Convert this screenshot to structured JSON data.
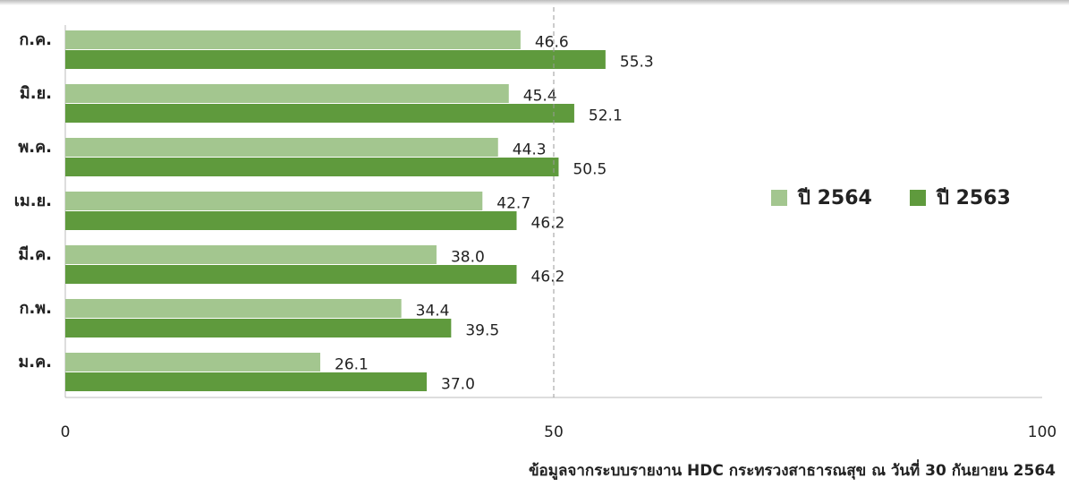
{
  "chart_data": {
    "type": "hbar",
    "categories": [
      "ก.ค.",
      "มิ.ย.",
      "พ.ค.",
      "เม.ย.",
      "มี.ค.",
      "ก.พ.",
      "ม.ค."
    ],
    "series": [
      {
        "name": "ปี 2564",
        "color": "#a3c68f",
        "values": [
          46.6,
          45.4,
          44.3,
          42.7,
          38.0,
          34.4,
          26.1
        ],
        "value_labels": [
          "46.6",
          "45.4",
          "44.3",
          "42.7",
          "38.0",
          "34.4",
          "26.1"
        ]
      },
      {
        "name": "ปี 2563",
        "color": "#5f9a3d",
        "values": [
          55.3,
          52.1,
          50.5,
          46.2,
          46.2,
          39.5,
          37.0
        ],
        "value_labels": [
          "55.3",
          "52.1",
          "50.5",
          "46.2",
          "46.2",
          "39.5",
          "37.0"
        ]
      }
    ],
    "xlim": [
      0,
      100
    ],
    "xticks": [
      0,
      50,
      100
    ],
    "reference_line": 50,
    "note": "ข้อมูลจากระบบรายงาน HDC กระทรวงสาธารณสุข ณ วันที่ 30 กันยายน 2564"
  }
}
